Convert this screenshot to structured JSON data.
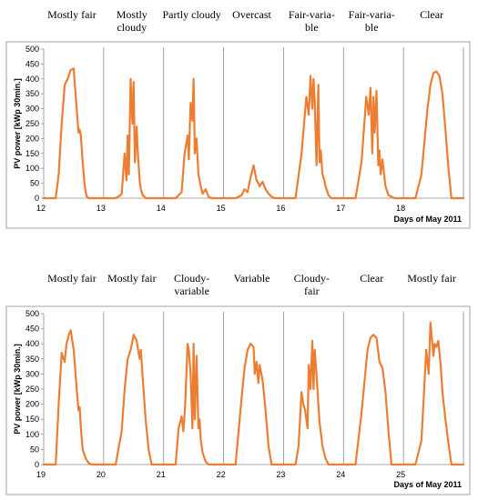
{
  "chart_data": [
    {
      "type": "line",
      "ylabel": "PV power  [kWp 30min.]",
      "xlabel": "Days of May 2011",
      "ylim": [
        0,
        500
      ],
      "y_ticks": [
        0,
        50,
        100,
        150,
        200,
        250,
        300,
        350,
        400,
        450,
        500
      ],
      "days": [
        "12",
        "13",
        "14",
        "15",
        "16",
        "17",
        "18"
      ],
      "weather": [
        [
          "Mostly fair"
        ],
        [
          "Mostly",
          "cloudy"
        ],
        [
          "Partly cloudy"
        ],
        [
          "Overcast"
        ],
        [
          "Fair-varia-",
          "ble"
        ],
        [
          "Fair-varia-",
          "ble"
        ],
        [
          "Clear"
        ]
      ],
      "color": "#ED7D31",
      "series": [
        {
          "x": [
            0,
            0.2,
            0.25,
            0.3,
            0.35,
            0.4,
            0.45,
            0.5,
            0.52,
            0.55,
            0.58,
            0.6,
            0.62,
            0.65,
            0.68,
            0.7,
            0.72,
            0.75,
            0.8,
            1,
            1.2,
            1.28,
            1.3,
            1.35,
            1.38,
            1.4,
            1.42,
            1.45,
            1.48,
            1.5,
            1.52,
            1.55,
            1.57,
            1.6,
            1.62,
            1.65,
            1.68,
            1.7,
            1.75,
            1.8,
            2,
            2.2,
            2.3,
            2.35,
            2.4,
            2.42,
            2.45,
            2.48,
            2.5,
            2.52,
            2.55,
            2.58,
            2.6,
            2.62,
            2.65,
            2.7,
            2.75,
            2.8,
            2.85,
            3,
            3.2,
            3.3,
            3.35,
            3.4,
            3.45,
            3.5,
            3.55,
            3.58,
            3.6,
            3.65,
            3.7,
            3.75,
            3.8,
            3.85,
            3.9,
            4,
            4.2,
            4.3,
            4.38,
            4.42,
            4.45,
            4.48,
            4.5,
            4.52,
            4.55,
            4.58,
            4.6,
            4.62,
            4.65,
            4.68,
            4.7,
            4.75,
            4.8,
            4.85,
            5,
            5.2,
            5.3,
            5.38,
            5.42,
            5.45,
            5.48,
            5.5,
            5.52,
            5.55,
            5.58,
            5.6,
            5.62,
            5.65,
            5.7,
            5.75,
            5.85,
            6,
            6.2,
            6.3,
            6.4,
            6.45,
            6.5,
            6.55,
            6.6,
            6.65,
            6.7,
            6.75,
            6.8,
            7
          ],
          "y": [
            0,
            0,
            80,
            250,
            380,
            400,
            430,
            435,
            380,
            300,
            220,
            230,
            210,
            120,
            50,
            20,
            5,
            0,
            0,
            0,
            0,
            10,
            15,
            150,
            60,
            210,
            80,
            400,
            250,
            390,
            120,
            240,
            150,
            60,
            30,
            10,
            5,
            0,
            0,
            0,
            0,
            0,
            20,
            150,
            210,
            130,
            320,
            260,
            400,
            150,
            200,
            80,
            60,
            40,
            15,
            30,
            5,
            0,
            0,
            0,
            0,
            10,
            30,
            20,
            70,
            110,
            60,
            50,
            40,
            55,
            30,
            15,
            5,
            0,
            0,
            0,
            0,
            150,
            340,
            280,
            410,
            300,
            400,
            330,
            110,
            380,
            120,
            160,
            80,
            60,
            40,
            10,
            0,
            0,
            0,
            0,
            120,
            340,
            280,
            370,
            150,
            340,
            220,
            360,
            110,
            160,
            80,
            130,
            40,
            10,
            0,
            0,
            0,
            80,
            300,
            380,
            420,
            425,
            410,
            350,
            230,
            100,
            0,
            0
          ]
        }
      ]
    },
    {
      "type": "line",
      "ylabel": "PV power  [kWp 30min.]",
      "xlabel": "Days of May 2011",
      "ylim": [
        0,
        500
      ],
      "y_ticks": [
        0,
        50,
        100,
        150,
        200,
        250,
        300,
        350,
        400,
        450,
        500
      ],
      "days": [
        "19",
        "20",
        "21",
        "22",
        "23",
        "24",
        "25"
      ],
      "weather": [
        [
          "Mostly fair"
        ],
        [
          "Mostly fair"
        ],
        [
          "Cloudy-",
          "variable"
        ],
        [
          "Variable"
        ],
        [
          "Cloudy-",
          "fair"
        ],
        [
          "Clear"
        ],
        [
          "Mostly fair"
        ]
      ],
      "color": "#ED7D31",
      "series": [
        {
          "x": [
            0,
            0.2,
            0.25,
            0.3,
            0.35,
            0.38,
            0.42,
            0.45,
            0.5,
            0.52,
            0.55,
            0.58,
            0.6,
            0.62,
            0.65,
            0.7,
            0.75,
            0.8,
            1,
            1.2,
            1.3,
            1.35,
            1.4,
            1.45,
            1.5,
            1.55,
            1.6,
            1.62,
            1.65,
            1.7,
            1.75,
            1.8,
            2,
            2.2,
            2.25,
            2.3,
            2.33,
            2.36,
            2.4,
            2.42,
            2.45,
            2.48,
            2.5,
            2.52,
            2.55,
            2.58,
            2.6,
            2.62,
            2.65,
            2.7,
            2.75,
            2.8,
            3,
            3.2,
            3.3,
            3.35,
            3.4,
            3.45,
            3.5,
            3.52,
            3.55,
            3.58,
            3.6,
            3.65,
            3.7,
            3.75,
            3.8,
            4,
            4.2,
            4.25,
            4.3,
            4.33,
            4.36,
            4.4,
            4.42,
            4.45,
            4.48,
            4.5,
            4.52,
            4.55,
            4.58,
            4.6,
            4.65,
            4.7,
            4.75,
            4.8,
            5,
            5.2,
            5.3,
            5.4,
            5.45,
            5.5,
            5.55,
            5.6,
            5.65,
            5.7,
            5.75,
            5.8,
            6,
            6.2,
            6.3,
            6.38,
            6.42,
            6.45,
            6.5,
            6.52,
            6.55,
            6.58,
            6.6,
            6.62,
            6.65,
            6.7,
            6.75,
            6.8,
            7
          ],
          "y": [
            0,
            0,
            200,
            370,
            340,
            400,
            430,
            445,
            380,
            330,
            250,
            180,
            190,
            120,
            50,
            20,
            5,
            0,
            0,
            0,
            110,
            250,
            350,
            380,
            430,
            410,
            350,
            380,
            290,
            150,
            50,
            0,
            0,
            0,
            120,
            160,
            110,
            200,
            400,
            380,
            300,
            120,
            400,
            150,
            360,
            120,
            150,
            80,
            40,
            10,
            0,
            0,
            0,
            0,
            220,
            320,
            380,
            400,
            390,
            300,
            340,
            270,
            330,
            280,
            180,
            60,
            0,
            0,
            0,
            60,
            240,
            200,
            180,
            120,
            330,
            250,
            410,
            250,
            380,
            300,
            200,
            140,
            60,
            20,
            0,
            0,
            0,
            0,
            170,
            380,
            420,
            430,
            420,
            340,
            320,
            240,
            110,
            0,
            0,
            0,
            80,
            380,
            300,
            470,
            360,
            400,
            390,
            410,
            370,
            330,
            240,
            150,
            70,
            0,
            0
          ]
        }
      ]
    }
  ]
}
